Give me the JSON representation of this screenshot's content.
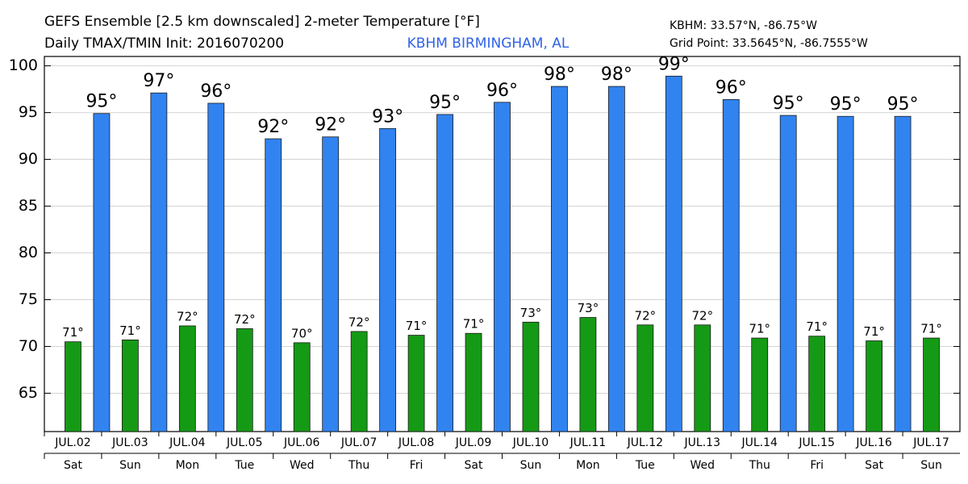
{
  "chart_data": {
    "type": "bar",
    "title": "GEFS Ensemble [2.5 km downscaled] 2-meter Temperature [°F]",
    "subtitle": "Daily TMAX/TMIN Init: 2016070200",
    "location": "KBHM BIRMINGHAM, AL",
    "station": "KBHM: 33.57°N, -86.75°W",
    "grid_point": "Grid Point: 33.5645°N, -86.7555°W",
    "categories": [
      "JUL.02",
      "JUL.03",
      "JUL.04",
      "JUL.05",
      "JUL.06",
      "JUL.07",
      "JUL.08",
      "JUL.09",
      "JUL.10",
      "JUL.11",
      "JUL.12",
      "JUL.13",
      "JUL.14",
      "JUL.15",
      "JUL.16",
      "JUL.17"
    ],
    "weekdays": [
      "Sat",
      "Sun",
      "Mon",
      "Tue",
      "Wed",
      "Thu",
      "Fri",
      "Sat",
      "Sun",
      "Mon",
      "Tue",
      "Wed",
      "Thu",
      "Fri",
      "Sat",
      "Sun"
    ],
    "series": [
      {
        "name": "TMIN",
        "color": "#159a15",
        "values": [
          70.5,
          70.7,
          72.2,
          71.9,
          70.4,
          71.6,
          71.2,
          71.4,
          72.6,
          73.1,
          72.3,
          72.3,
          70.9,
          71.1,
          70.6,
          70.9
        ],
        "value_labels": [
          "71°",
          "71°",
          "72°",
          "72°",
          "70°",
          "72°",
          "71°",
          "71°",
          "73°",
          "73°",
          "72°",
          "72°",
          "71°",
          "71°",
          "71°",
          "71°"
        ]
      },
      {
        "name": "TMAX",
        "color": "#3183f0",
        "values": [
          94.9,
          97.1,
          96.0,
          92.2,
          92.4,
          93.3,
          94.8,
          96.1,
          97.8,
          97.8,
          98.9,
          96.4,
          94.7,
          94.6,
          94.6,
          null
        ],
        "value_labels": [
          "95°",
          "97°",
          "96°",
          "92°",
          "92°",
          "93°",
          "95°",
          "96°",
          "98°",
          "98°",
          "99°",
          "96°",
          "95°",
          "95°",
          "95°",
          null
        ]
      }
    ],
    "ylim": [
      60.9,
      101
    ],
    "yticks": [
      65,
      70,
      75,
      80,
      85,
      90,
      95,
      100
    ],
    "grid": true
  }
}
